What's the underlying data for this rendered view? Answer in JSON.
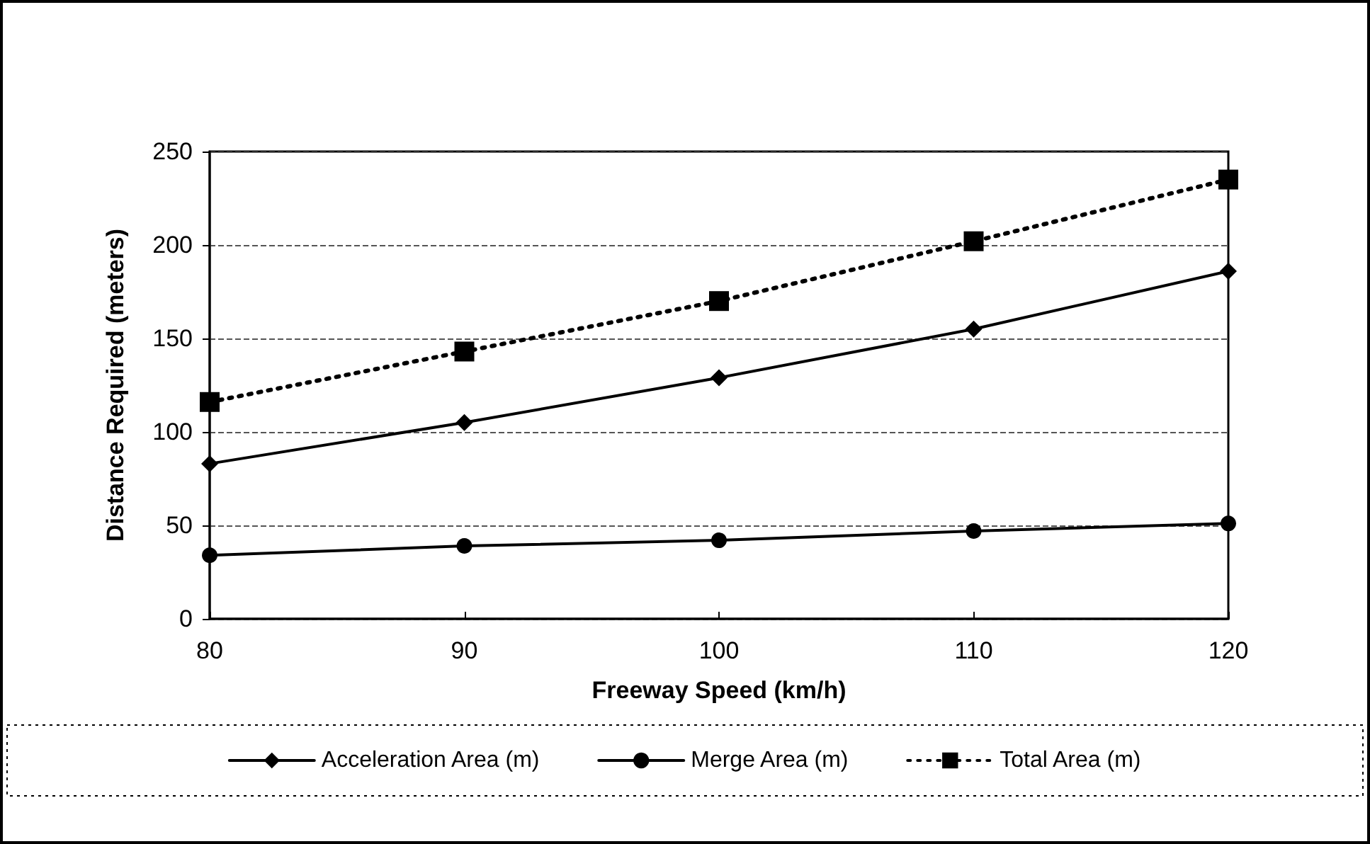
{
  "chart_data": {
    "type": "line",
    "xlabel": "Freeway Speed (km/h)",
    "ylabel": "Distance Required (meters)",
    "x": [
      80,
      90,
      100,
      110,
      120
    ],
    "series": [
      {
        "name": "Acceleration Area (m)",
        "color": "#000000",
        "marker": "diamond",
        "line_style": "solid",
        "values": [
          83,
          105,
          129,
          155,
          186
        ]
      },
      {
        "name": "Merge Area (m)",
        "color": "#000000",
        "marker": "circle",
        "line_style": "solid",
        "values": [
          34,
          39,
          42,
          47,
          51
        ]
      },
      {
        "name": "Total Area (m)",
        "color": "#000000",
        "marker": "square",
        "line_style": "dotted",
        "values": [
          116,
          143,
          170,
          202,
          235
        ]
      }
    ],
    "xlim": [
      80,
      120
    ],
    "xticks": [
      80,
      90,
      100,
      110,
      120
    ],
    "ylim": [
      0,
      250
    ],
    "yticks": [
      0,
      50,
      100,
      150,
      200,
      250
    ],
    "grid": "y",
    "legend": "bottom"
  }
}
